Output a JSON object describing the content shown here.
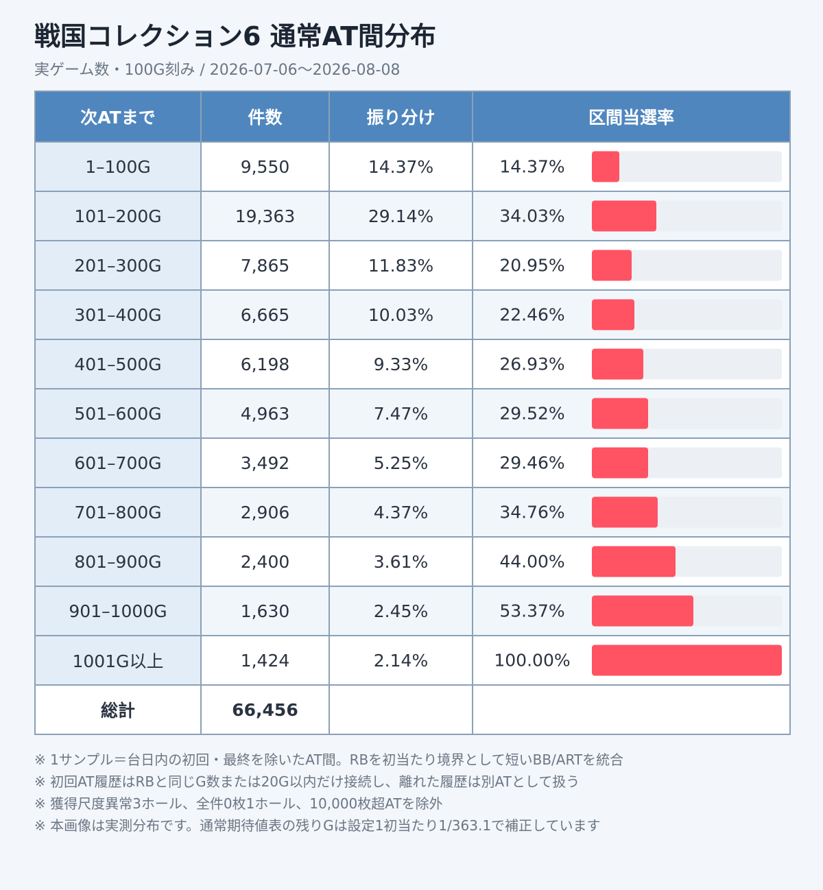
{
  "title": "戦国コレクション6 通常AT間分布",
  "subtitle": "実ゲーム数・100G刻み / 2026-07-06〜2026-08-08",
  "colors": {
    "header_bg": "#4f86be",
    "bar": "#ff5263",
    "bar_track": "#ecf0f4",
    "range_bg": "#e3edf7"
  },
  "chart_data": {
    "type": "table",
    "columns": [
      "次ATまで",
      "件数",
      "振り分け",
      "区間当選率"
    ],
    "rows": [
      {
        "range": "1–100G",
        "count": "9,550",
        "share": "14.37%",
        "rate_label": "14.37%",
        "rate": 14.37
      },
      {
        "range": "101–200G",
        "count": "19,363",
        "share": "29.14%",
        "rate_label": "34.03%",
        "rate": 34.03
      },
      {
        "range": "201–300G",
        "count": "7,865",
        "share": "11.83%",
        "rate_label": "20.95%",
        "rate": 20.95
      },
      {
        "range": "301–400G",
        "count": "6,665",
        "share": "10.03%",
        "rate_label": "22.46%",
        "rate": 22.46
      },
      {
        "range": "401–500G",
        "count": "6,198",
        "share": "9.33%",
        "rate_label": "26.93%",
        "rate": 26.93
      },
      {
        "range": "501–600G",
        "count": "4,963",
        "share": "7.47%",
        "rate_label": "29.52%",
        "rate": 29.52
      },
      {
        "range": "601–700G",
        "count": "3,492",
        "share": "5.25%",
        "rate_label": "29.46%",
        "rate": 29.46
      },
      {
        "range": "701–800G",
        "count": "2,906",
        "share": "4.37%",
        "rate_label": "34.76%",
        "rate": 34.76
      },
      {
        "range": "801–900G",
        "count": "2,400",
        "share": "3.61%",
        "rate_label": "44.00%",
        "rate": 44.0
      },
      {
        "range": "901–1000G",
        "count": "1,630",
        "share": "2.45%",
        "rate_label": "53.37%",
        "rate": 53.37
      },
      {
        "range": "1001G以上",
        "count": "1,424",
        "share": "2.14%",
        "rate_label": "100.00%",
        "rate": 100.0
      }
    ],
    "bar_max": 100,
    "total": {
      "label": "総計",
      "count": "66,456"
    }
  },
  "notes": [
    "※ 1サンプル＝台日内の初回・最終を除いたAT間。RBを初当たり境界として短いBB/ARTを統合",
    "※ 初回AT履歴はRBと同じG数または20G以内だけ接続し、離れた履歴は別ATとして扱う",
    "※ 獲得尺度異常3ホール、全件0枚1ホール、10,000枚超ATを除外",
    "※ 本画像は実測分布です。通常期待値表の残りGは設定1初当たり1/363.1で補正しています"
  ]
}
